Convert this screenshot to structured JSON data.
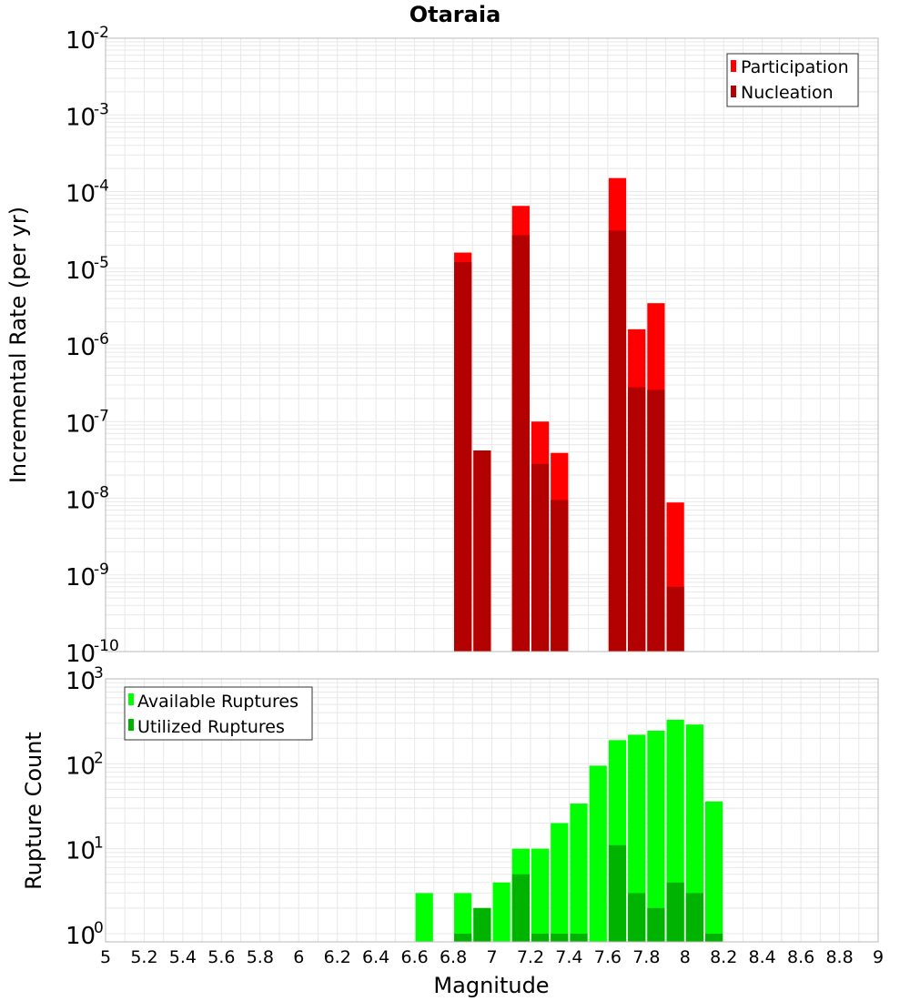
{
  "chart_data": [
    {
      "type": "bar",
      "title": "Otaraia",
      "ylabel": "Incremental Rate (per yr)",
      "yscale": "log",
      "ylim": [
        1e-10,
        0.01
      ],
      "xlim": [
        5,
        9
      ],
      "y_ticks": [
        {
          "base": "10",
          "exp": "-2"
        },
        {
          "base": "10",
          "exp": "-3"
        },
        {
          "base": "10",
          "exp": "-4"
        },
        {
          "base": "10",
          "exp": "-5"
        },
        {
          "base": "10",
          "exp": "-6"
        },
        {
          "base": "10",
          "exp": "-7"
        },
        {
          "base": "10",
          "exp": "-8"
        },
        {
          "base": "10",
          "exp": "-9"
        },
        {
          "base": "10",
          "exp": "-10"
        }
      ],
      "legend_position": "top-right",
      "series": [
        {
          "name": "Participation",
          "color": "#ff0000",
          "x": [
            6.85,
            6.95,
            7.15,
            7.25,
            7.35,
            7.65,
            7.75,
            7.85,
            7.95
          ],
          "values": [
            1.6e-05,
            4.2e-08,
            6.5e-05,
            1e-07,
            3.9e-08,
            0.00015,
            1.6e-06,
            3.5e-06,
            8.8e-09
          ]
        },
        {
          "name": "Nucleation",
          "color": "#b30000",
          "x": [
            6.85,
            6.95,
            7.15,
            7.25,
            7.35,
            7.65,
            7.75,
            7.85,
            7.95
          ],
          "values": [
            1.2e-05,
            4.2e-08,
            2.7e-05,
            2.8e-08,
            9.5e-09,
            3.1e-05,
            2.8e-07,
            2.6e-07,
            7e-10
          ]
        }
      ]
    },
    {
      "type": "bar",
      "ylabel": "Rupture Count",
      "xlabel": "Magnitude",
      "yscale": "log",
      "ylim": [
        0.8,
        1000
      ],
      "xlim": [
        5,
        9
      ],
      "x_tick_labels": [
        "5",
        "5.2",
        "5.4",
        "5.6",
        "5.8",
        "6",
        "6.2",
        "6.4",
        "6.6",
        "6.8",
        "7",
        "7.2",
        "7.4",
        "7.6",
        "7.8",
        "8",
        "8.2",
        "8.4",
        "8.6",
        "8.8",
        "9"
      ],
      "y_ticks": [
        {
          "base": "10",
          "exp": "3"
        },
        {
          "base": "10",
          "exp": "2"
        },
        {
          "base": "10",
          "exp": "1"
        },
        {
          "base": "10",
          "exp": "0"
        }
      ],
      "legend_position": "top-left",
      "series": [
        {
          "name": "Available Ruptures",
          "color": "#00ff00",
          "x": [
            6.65,
            6.85,
            6.95,
            7.05,
            7.15,
            7.25,
            7.35,
            7.45,
            7.55,
            7.65,
            7.75,
            7.85,
            7.95,
            8.05,
            8.15
          ],
          "values": [
            3,
            3,
            2,
            4,
            10,
            10,
            20,
            34,
            95,
            190,
            220,
            245,
            330,
            290,
            36
          ]
        },
        {
          "name": "Utilized Ruptures",
          "color": "#00b300",
          "x": [
            6.85,
            6.95,
            7.15,
            7.25,
            7.35,
            7.45,
            7.65,
            7.75,
            7.85,
            7.95,
            8.05,
            8.15
          ],
          "values": [
            1,
            2,
            5,
            1,
            1,
            1,
            11,
            3,
            2,
            4,
            3,
            1
          ]
        }
      ]
    }
  ]
}
